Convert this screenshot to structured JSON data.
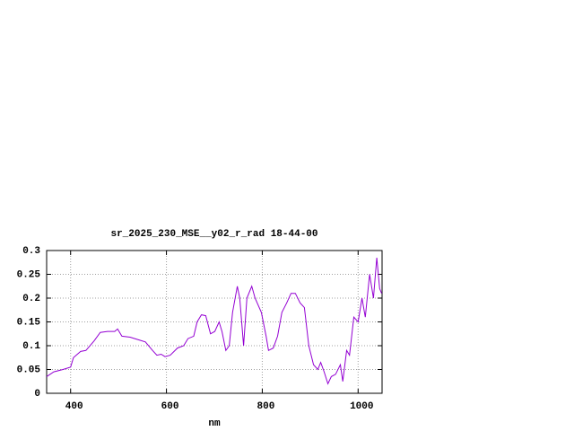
{
  "chart_data": {
    "type": "line",
    "title": "sr_2025_230_MSE__y02_r_rad 18-44-00",
    "x_label": "nm",
    "x": [
      350,
      365,
      384,
      400,
      406,
      421,
      432,
      449,
      462,
      477,
      492,
      498,
      507,
      524,
      543,
      556,
      571,
      580,
      589,
      597,
      608,
      623,
      636,
      645,
      657,
      664,
      673,
      682,
      692,
      701,
      710,
      716,
      724,
      731,
      738,
      748,
      753,
      761,
      768,
      778,
      785,
      798,
      808,
      813,
      823,
      832,
      841,
      851,
      860,
      869,
      879,
      888,
      897,
      907,
      916,
      922,
      929,
      937,
      944,
      953,
      963,
      968,
      976,
      982,
      991,
      1000,
      1008,
      1015,
      1024,
      1032,
      1039,
      1045,
      1049
    ],
    "series": [
      {
        "color": "#9400d3",
        "values": [
          0.035,
          0.045,
          0.05,
          0.055,
          0.075,
          0.088,
          0.09,
          0.11,
          0.128,
          0.13,
          0.13,
          0.135,
          0.12,
          0.118,
          0.112,
          0.108,
          0.09,
          0.08,
          0.082,
          0.077,
          0.08,
          0.095,
          0.1,
          0.115,
          0.12,
          0.15,
          0.165,
          0.163,
          0.125,
          0.13,
          0.15,
          0.13,
          0.09,
          0.1,
          0.17,
          0.225,
          0.2,
          0.1,
          0.2,
          0.225,
          0.2,
          0.17,
          0.12,
          0.09,
          0.095,
          0.12,
          0.17,
          0.19,
          0.21,
          0.21,
          0.19,
          0.18,
          0.1,
          0.06,
          0.05,
          0.065,
          0.045,
          0.02,
          0.035,
          0.04,
          0.06,
          0.025,
          0.09,
          0.08,
          0.16,
          0.15,
          0.2,
          0.16,
          0.25,
          0.2,
          0.285,
          0.22,
          0.21
        ]
      }
    ],
    "xlim": [
      350,
      1050
    ],
    "xticks": [
      400,
      600,
      800,
      1000
    ],
    "ylim": [
      0,
      0.3
    ],
    "yticks": [
      0,
      0.05,
      0.1,
      0.15,
      0.2,
      0.25,
      0.3
    ],
    "grid": true
  }
}
